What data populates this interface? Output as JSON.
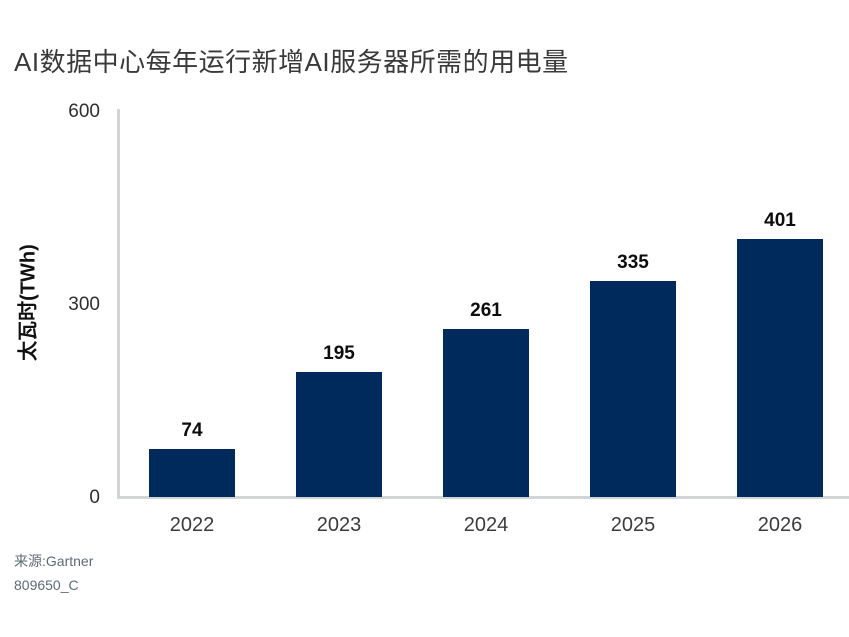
{
  "title": "AI数据中心每年运行新增AI服务器所需的用电量",
  "source": {
    "line1": "来源:Gartner",
    "line2": "809650_C"
  },
  "chart_data": {
    "type": "bar",
    "categories": [
      "2022",
      "2023",
      "2024",
      "2025",
      "2026"
    ],
    "values": [
      74,
      195,
      261,
      335,
      401
    ],
    "title": "AI数据中心每年运行新增AI服务器所需的用电量",
    "xlabel": "",
    "ylabel": "太瓦时(TWh)",
    "ylim": [
      0,
      600
    ],
    "yticks": [
      600,
      300,
      0
    ],
    "grid": false,
    "legend": "none",
    "data_labels_shown": true
  },
  "colors": {
    "bar": "#002a5c",
    "axis_line": "#d2d5d6",
    "title_text": "#3a3a3a",
    "tick_text": "#2e2e2e",
    "value_label_text": "#0d0d0d",
    "source_text": "#5d6c74",
    "background": "#ffffff"
  }
}
